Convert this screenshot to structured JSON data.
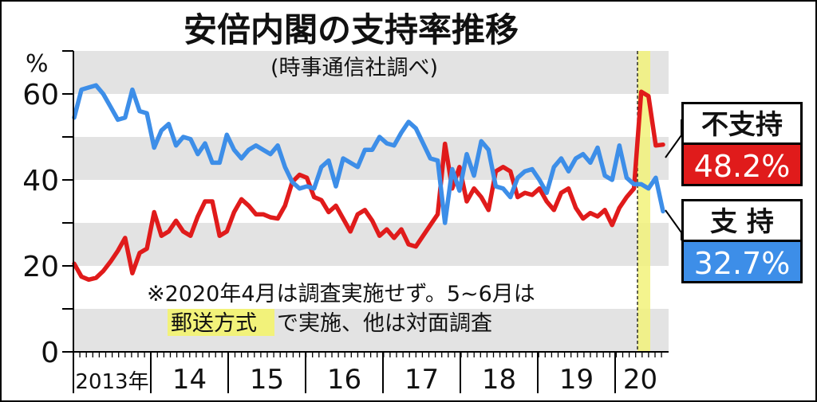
{
  "chart_data": {
    "type": "line",
    "title": "安倍内閣の支持率推移",
    "subtitle": "(時事通信社調べ)",
    "ylabel": "%",
    "ylim": [
      0,
      70
    ],
    "y_ticks": [
      "0",
      "20",
      "40",
      "60"
    ],
    "x_labels": [
      "2013年",
      "14",
      "15",
      "16",
      "17",
      "18",
      "19",
      "20"
    ],
    "grid": "alternating-bands",
    "note_line1": "※2020年4月は調査実施せず。5~6月は",
    "note_highlight": "郵送方式",
    "note_rest": "で実施、他は対面調査",
    "series": [
      {
        "name": "不支持",
        "label": "不支持",
        "value_label": "48.2%",
        "color": "#e01b1b",
        "values": [
          20.5,
          17.5,
          16.8,
          17.2,
          18.8,
          21,
          23.5,
          26.5,
          18.3,
          23,
          24,
          32.5,
          27,
          28,
          30.5,
          28,
          27,
          31.5,
          35,
          35,
          27,
          28,
          32.5,
          35.5,
          34,
          32,
          32,
          31.3,
          31,
          34,
          39.5,
          41.2,
          40.5,
          36,
          35.3,
          32.5,
          34,
          31,
          28,
          32,
          33,
          30.5,
          27,
          28.5,
          26.5,
          28.5,
          25,
          24.5,
          27,
          29.5,
          32,
          48.4,
          38,
          43,
          35,
          38,
          36,
          33,
          42,
          43,
          42,
          36,
          37,
          36.5,
          38,
          35,
          33,
          37,
          38,
          33.5,
          31,
          32.3,
          31.5,
          33,
          29.5,
          33.5,
          36,
          38,
          60.5,
          59.5,
          48,
          48.2
        ]
      },
      {
        "name": "支持",
        "label": "支 持",
        "value_label": "32.7%",
        "color": "#3d8ee8",
        "values": [
          54.5,
          61,
          61.5,
          62,
          60,
          57,
          54,
          54.5,
          61,
          56,
          55.5,
          47.5,
          51.5,
          53,
          48,
          50,
          49.5,
          46,
          48.5,
          44,
          44,
          50.5,
          47,
          45,
          47,
          48,
          47,
          46,
          48,
          43,
          39.5,
          38,
          38.5,
          38,
          43,
          44.5,
          38.5,
          45,
          44,
          43,
          47,
          47,
          50,
          48.5,
          48,
          51,
          53.5,
          52,
          48.5,
          45,
          44.5,
          30,
          42.5,
          37.5,
          46,
          41,
          49,
          47,
          38.5,
          38,
          36,
          40.5,
          42,
          42.5,
          40,
          37,
          43,
          45,
          42,
          45,
          46,
          44,
          47.5,
          41,
          40,
          48,
          40.5,
          39,
          39,
          38,
          40.5,
          32.7
        ]
      }
    ]
  }
}
